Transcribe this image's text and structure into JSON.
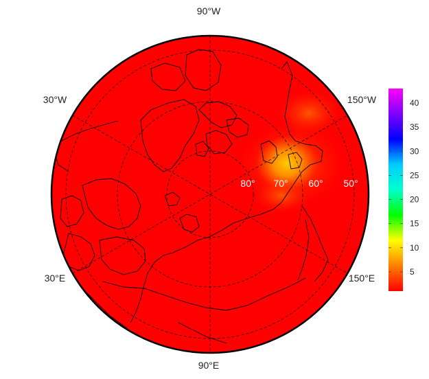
{
  "map": {
    "projection": "north polar stereographic",
    "fill_color": "#ff0000",
    "coastline_color": "#000000",
    "longitude_labels": {
      "top": "90°W",
      "upper_left": "30°W",
      "upper_right": "150°W",
      "lower_left": "30°E",
      "lower_right": "150°E",
      "bottom": "90°E"
    },
    "latitude_labels": [
      "80°",
      "70°",
      "60°",
      "50°"
    ],
    "hotspot_colors": {
      "outer": "#ff3a00",
      "mid": "#ff6600",
      "inner": "#ff9900",
      "core": "#ffcc00"
    }
  },
  "colorbar": {
    "ticks": [
      "5",
      "10",
      "15",
      "20",
      "25",
      "30",
      "35",
      "40"
    ],
    "tick_values": [
      5,
      10,
      15,
      20,
      25,
      30,
      35,
      40
    ],
    "min": 1,
    "max": 43,
    "colors": [
      "#ff0000",
      "#ff7f00",
      "#ffff00",
      "#00ff00",
      "#00ffcc",
      "#00ccff",
      "#0000ff",
      "#7f00ff",
      "#ff00ff"
    ]
  }
}
